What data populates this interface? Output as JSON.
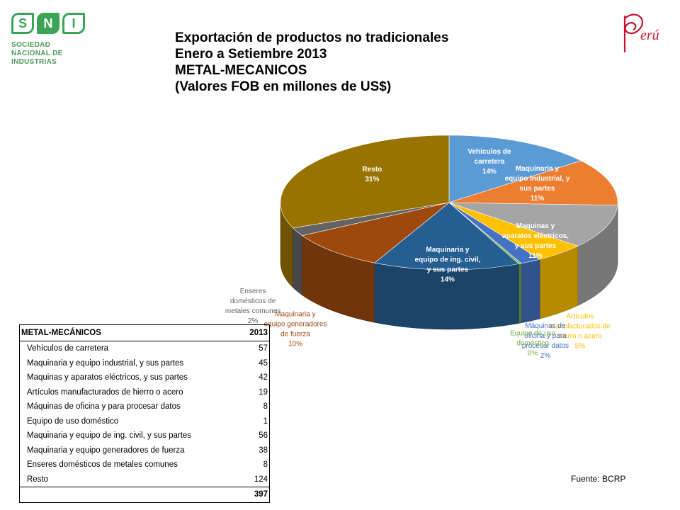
{
  "header": {
    "logo_sni": {
      "letters": [
        "S",
        "N",
        "I"
      ],
      "name_lines": [
        "SOCIEDAD",
        "NACIONAL DE",
        "INDUSTRIAS"
      ]
    },
    "logo_peru_text": "erú",
    "title_lines": [
      "Exportación de productos no tradicionales",
      "Enero a Setiembre 2013",
      "METAL-MECANICOS",
      "(Valores FOB en millones de US$)"
    ]
  },
  "chart_data": {
    "type": "pie",
    "title": "",
    "slices": [
      {
        "label_lines": [
          "Vehículos de",
          "carretera"
        ],
        "percent_label": "14%",
        "value": 57,
        "color": "#5b9bd5"
      },
      {
        "label_lines": [
          "Maquinaria y",
          "equipo industrial, y",
          "sus partes"
        ],
        "percent_label": "11%",
        "value": 45,
        "color": "#ed7d31"
      },
      {
        "label_lines": [
          "Maquinas y",
          "aparatos eléctricos,",
          "y sus partes"
        ],
        "percent_label": "11%",
        "value": 42,
        "color": "#a5a5a5"
      },
      {
        "label_lines": [
          "Artículos",
          "manufacturados de",
          "hierro o acero"
        ],
        "percent_label": "5%",
        "value": 19,
        "color": "#ffc000"
      },
      {
        "label_lines": [
          "Máquinas de",
          "oficina y para",
          "procesar datos"
        ],
        "percent_label": "2%",
        "value": 8,
        "color": "#4472c4"
      },
      {
        "label_lines": [
          "Equipo de uso",
          "doméstico"
        ],
        "percent_label": "0%",
        "value": 1,
        "color": "#70ad47"
      },
      {
        "label_lines": [
          "Maquinaria y",
          "equipo de ing. civil,",
          "y sus partes"
        ],
        "percent_label": "14%",
        "value": 56,
        "color": "#255e91"
      },
      {
        "label_lines": [
          "Maquinaria y",
          "equipo generadores",
          "de fuerza"
        ],
        "percent_label": "10%",
        "value": 38,
        "color": "#9e480e"
      },
      {
        "label_lines": [
          "Enseres",
          "domésticos de",
          "metales comunes"
        ],
        "percent_label": "2%",
        "value": 8,
        "color": "#636363"
      },
      {
        "label_lines": [
          "Resto"
        ],
        "percent_label": "31%",
        "value": 124,
        "color": "#997300"
      }
    ]
  },
  "table": {
    "header_label": "METAL-MECÁNICOS",
    "header_year": "2013",
    "rows": [
      {
        "label": "Vehículos de carretera",
        "value": "57"
      },
      {
        "label": "Maquinaria y equipo industrial, y sus partes",
        "value": "45"
      },
      {
        "label": "Maquinas y aparatos eléctricos, y sus partes",
        "value": "42"
      },
      {
        "label": "Artículos manufacturados de hierro o acero",
        "value": "19"
      },
      {
        "label": "Máquinas de oficina y para procesar datos",
        "value": "8"
      },
      {
        "label": "Equipo de uso doméstico",
        "value": "1"
      },
      {
        "label": "Maquinaria y equipo de ing. civil, y sus partes",
        "value": "56"
      },
      {
        "label": "Maquinaria y equipo generadores de fuerza",
        "value": "38"
      },
      {
        "label": "Enseres domésticos de metales comunes",
        "value": "8"
      },
      {
        "label": "Resto",
        "value": "124"
      }
    ],
    "total": "397"
  },
  "footer": {
    "source": "Fuente: BCRP"
  }
}
